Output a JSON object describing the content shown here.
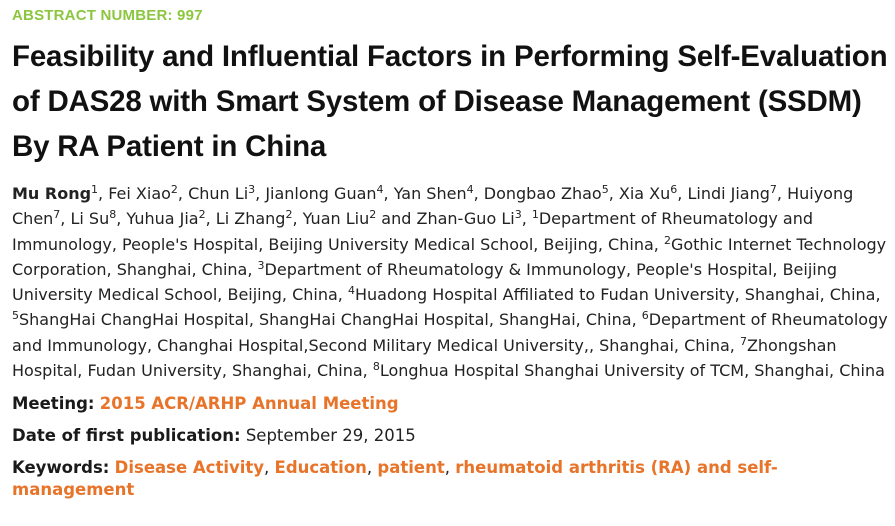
{
  "abstract_label": "ABSTRACT NUMBER: 997",
  "title": "Feasibility and Influential Factors in Performing Self-Evaluation of DAS28 with Smart System of Disease Management (SSDM) By RA Patient in China",
  "authors": [
    {
      "name": "Mu Rong",
      "aff": "1"
    },
    {
      "name": "Fei Xiao",
      "aff": "2"
    },
    {
      "name": "Chun Li",
      "aff": "3"
    },
    {
      "name": "Jianlong Guan",
      "aff": "4"
    },
    {
      "name": "Yan Shen",
      "aff": "4"
    },
    {
      "name": "Dongbao Zhao",
      "aff": "5"
    },
    {
      "name": "Xia Xu",
      "aff": "6"
    },
    {
      "name": "Lindi Jiang",
      "aff": "7"
    },
    {
      "name": "Huiyong Chen",
      "aff": "7"
    },
    {
      "name": "Li Su",
      "aff": "8"
    },
    {
      "name": "Yuhua Jia",
      "aff": "2"
    },
    {
      "name": "Li Zhang",
      "aff": "2"
    },
    {
      "name": "Yuan Liu",
      "aff": "2"
    },
    {
      "name": "Zhan-Guo Li",
      "aff": "3"
    }
  ],
  "affiliations": [
    {
      "num": "1",
      "text": "Department of Rheumatology and Immunology, People's Hospital, Beijing University Medical School, Beijing, China"
    },
    {
      "num": "2",
      "text": "Gothic Internet Technology Corporation, Shanghai, China"
    },
    {
      "num": "3",
      "text": "Department of Rheumatology & Immunology, People's Hospital, Beijing University Medical School, Beijing, China"
    },
    {
      "num": "4",
      "text": "Huadong Hospital Affiliated to Fudan University, Shanghai, China"
    },
    {
      "num": "5",
      "text": "ShangHai ChangHai Hospital, ShangHai ChangHai Hospital, ShangHai, China"
    },
    {
      "num": "6",
      "text": "Department of Rheumatology and Immunology, Changhai Hospital,Second Military Medical University,, Shanghai, China"
    },
    {
      "num": "7",
      "text": "Zhongshan Hospital, Fudan University, Shanghai, China"
    },
    {
      "num": "8",
      "text": "Longhua Hospital Shanghai University of TCM, Shanghai, China"
    }
  ],
  "meeting": {
    "label": "Meeting:",
    "value": "2015 ACR/ARHP Annual Meeting"
  },
  "publication": {
    "label": "Date of first publication:",
    "value": "September 29, 2015"
  },
  "keywords": {
    "label": "Keywords:",
    "items": [
      "Disease Activity",
      "Education",
      "patient",
      "rheumatoid arthritis (RA) and self-management"
    ]
  },
  "colors": {
    "abstract_label": "#8cc63f",
    "link": "#e8742a"
  }
}
